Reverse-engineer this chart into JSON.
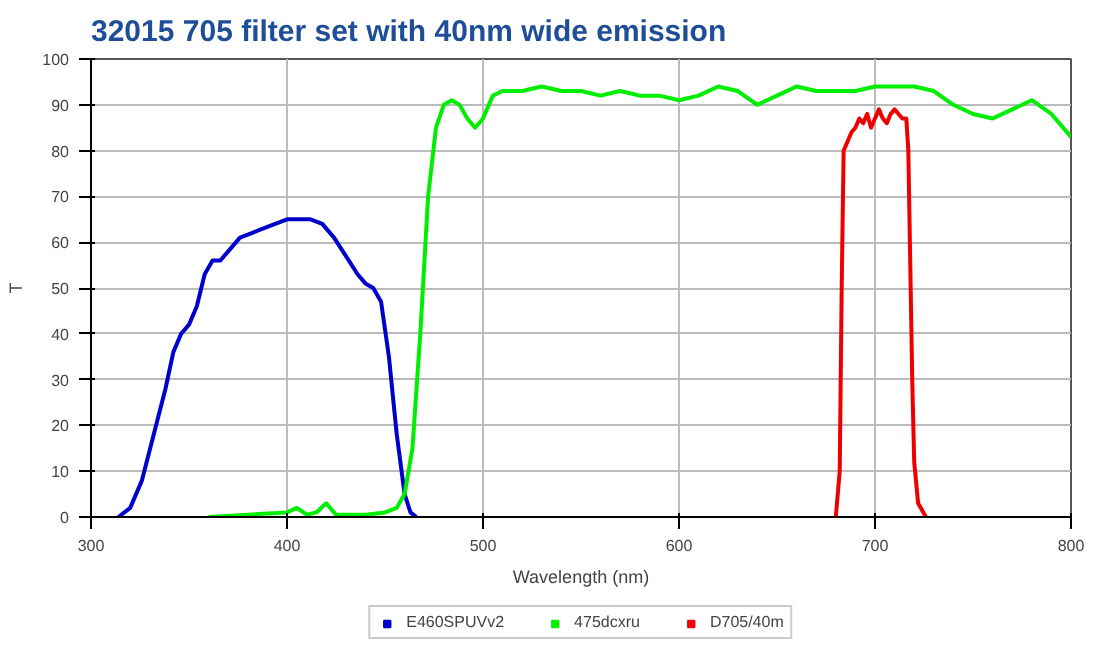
{
  "chart_data": {
    "type": "line",
    "title": "32015 705 filter set with 40nm wide emission",
    "xlabel": "Wavelength (nm)",
    "ylabel": "T",
    "xlim": [
      300,
      800
    ],
    "xticks": [
      300,
      400,
      500,
      600,
      700,
      800
    ],
    "ylim": [
      0,
      100
    ],
    "yticks": [
      0,
      10,
      20,
      30,
      40,
      50,
      60,
      70,
      80,
      90,
      100
    ],
    "grid": true,
    "legend": "bottom",
    "marker": "none",
    "line_style": "solid",
    "series": [
      {
        "name": "E460SPUVv2",
        "color": "#0000cc",
        "x": [
          314,
          320,
          326,
          332,
          338,
          342,
          346,
          350,
          354,
          358,
          362,
          366,
          370,
          376,
          382,
          388,
          394,
          400,
          406,
          412,
          418,
          424,
          430,
          436,
          440,
          444,
          448,
          452,
          456,
          460,
          463,
          466
        ],
        "values": [
          0,
          2,
          8,
          18,
          28,
          36,
          40,
          42,
          46,
          53,
          56,
          56,
          58,
          61,
          62,
          63,
          64,
          65,
          65,
          65,
          64,
          61,
          57,
          53,
          51,
          50,
          47,
          35,
          18,
          5,
          1,
          0
        ]
      },
      {
        "name": "475dcxru",
        "color": "#00ee00",
        "x": [
          360,
          380,
          400,
          405,
          410,
          415,
          420,
          425,
          430,
          440,
          450,
          456,
          460,
          464,
          468,
          472,
          476,
          480,
          484,
          488,
          492,
          496,
          500,
          505,
          510,
          520,
          530,
          540,
          550,
          560,
          570,
          580,
          590,
          600,
          610,
          620,
          630,
          640,
          650,
          660,
          670,
          680,
          690,
          700,
          710,
          720,
          730,
          740,
          750,
          760,
          770,
          780,
          790,
          800
        ],
        "values": [
          0,
          0.5,
          1,
          2,
          0.5,
          1,
          3,
          0.5,
          0.5,
          0.5,
          1,
          2,
          5,
          15,
          40,
          70,
          85,
          90,
          91,
          90,
          87,
          85,
          87,
          92,
          93,
          93,
          94,
          93,
          93,
          92,
          93,
          92,
          92,
          91,
          92,
          94,
          93,
          90,
          92,
          94,
          93,
          93,
          93,
          94,
          94,
          94,
          93,
          90,
          88,
          87,
          89,
          91,
          88,
          83
        ]
      },
      {
        "name": "D705/40m",
        "color": "#ee0000",
        "x": [
          680,
          682,
          683,
          684,
          686,
          688,
          690,
          692,
          694,
          696,
          698,
          700,
          702,
          704,
          706,
          708,
          710,
          712,
          714,
          716,
          717,
          718,
          719,
          720,
          722,
          726
        ],
        "values": [
          0,
          10,
          50,
          80,
          82,
          84,
          85,
          87,
          86,
          88,
          85,
          87,
          89,
          87,
          86,
          88,
          89,
          88,
          87,
          87,
          80,
          55,
          30,
          12,
          3,
          0
        ]
      }
    ]
  }
}
